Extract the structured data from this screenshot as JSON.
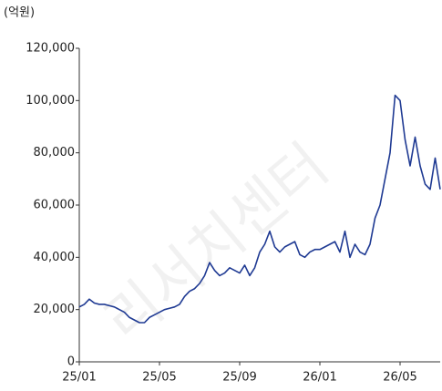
{
  "chart_data": {
    "type": "line",
    "unit_label": "(억원)",
    "watermark": "리서치센터",
    "categories": [
      "25/01",
      null,
      null,
      null,
      null,
      null,
      null,
      null,
      null,
      null,
      null,
      null,
      null,
      null,
      null,
      null,
      "25/05",
      null,
      null,
      null,
      null,
      null,
      null,
      null,
      null,
      null,
      null,
      null,
      null,
      null,
      null,
      null,
      "25/09",
      null,
      null,
      null,
      null,
      null,
      null,
      null,
      null,
      null,
      null,
      null,
      null,
      null,
      null,
      null,
      "26/01",
      null,
      null,
      null,
      null,
      null,
      null,
      null,
      null,
      null,
      null,
      null,
      null,
      null,
      null,
      null,
      "26/05",
      null,
      null,
      null,
      null,
      null,
      null,
      null,
      null
    ],
    "series": [
      {
        "name": null,
        "color": "#1f3a93",
        "values": [
          21000,
          22000,
          24000,
          22500,
          22000,
          22000,
          21500,
          21000,
          20000,
          19000,
          17000,
          16000,
          15000,
          15000,
          17000,
          18000,
          19000,
          20000,
          20500,
          21000,
          22000,
          25000,
          27000,
          28000,
          30000,
          33000,
          38000,
          35000,
          33000,
          34000,
          36000,
          35000,
          34000,
          37000,
          33000,
          36000,
          42000,
          45000,
          50000,
          44000,
          42000,
          44000,
          45000,
          46000,
          41000,
          40000,
          42000,
          43000,
          43000,
          44000,
          45000,
          46000,
          42000,
          50000,
          40000,
          45000,
          42000,
          41000,
          45000,
          55000,
          60000,
          70000,
          80000,
          102000,
          100000,
          85000,
          75000,
          86000,
          75000,
          68000,
          66000,
          78000,
          66000
        ]
      }
    ],
    "ylim": [
      0,
      120000
    ],
    "yticks": [
      0,
      {
        "value": 20000,
        "label": "20,000"
      },
      {
        "value": 40000,
        "label": "40,000"
      },
      {
        "value": 60000,
        "label": "60,000"
      },
      {
        "value": 80000,
        "label": "80,000"
      },
      {
        "value": 100000,
        "label": "100,000"
      },
      {
        "value": 120000,
        "label": "120,000"
      }
    ],
    "grid": false
  }
}
